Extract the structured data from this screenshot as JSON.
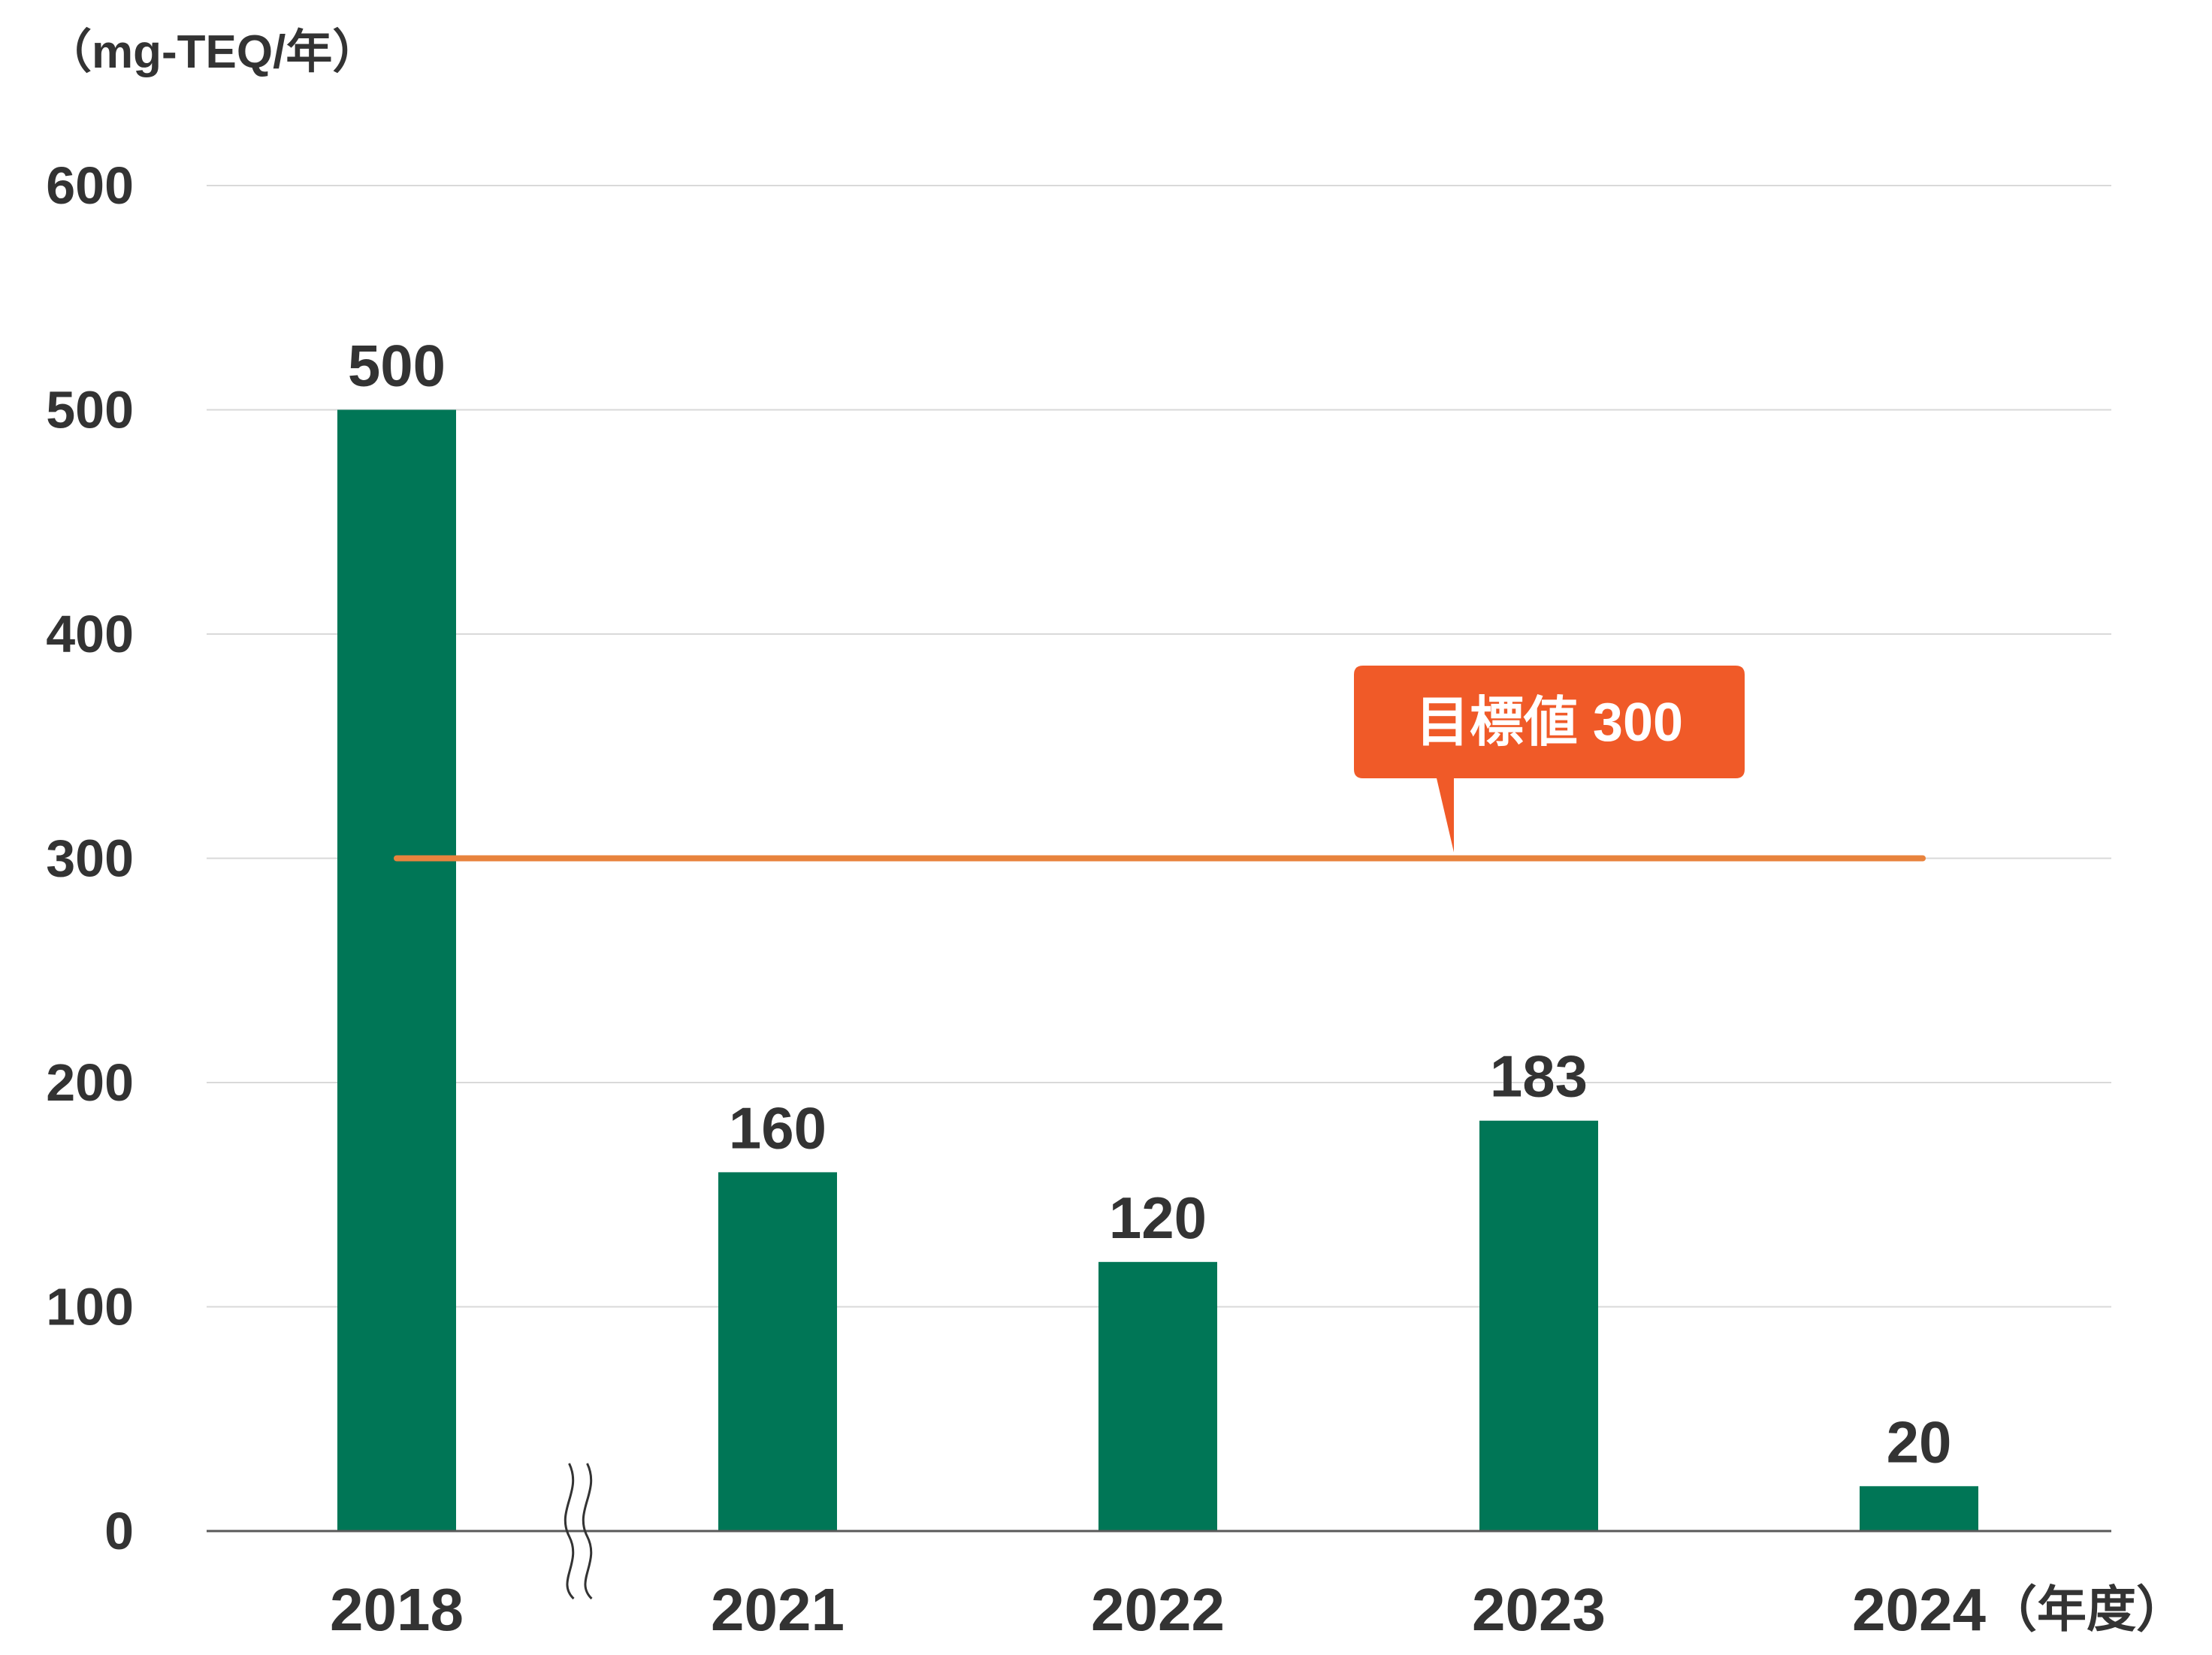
{
  "chart_data": {
    "type": "bar",
    "ylabel": "（mg-TEQ/年）",
    "xlabel": "（年度）",
    "categories": [
      "2018",
      "2021",
      "2022",
      "2023",
      "2024"
    ],
    "values": [
      500,
      160,
      120,
      183,
      20
    ],
    "ylim": [
      0,
      600
    ],
    "yticks": [
      0,
      100,
      200,
      300,
      400,
      500,
      600
    ],
    "grid": true,
    "axis_break_between": [
      "2018",
      "2021"
    ],
    "target": {
      "value": 300,
      "label": "目標値 300",
      "from": "2018",
      "to": "2024"
    },
    "colors": {
      "bar": "#007656",
      "target_line": "#e8833d",
      "callout": "#f05a28",
      "grid": "#d9d9d9",
      "axis": "#595959",
      "text": "#333333"
    }
  }
}
